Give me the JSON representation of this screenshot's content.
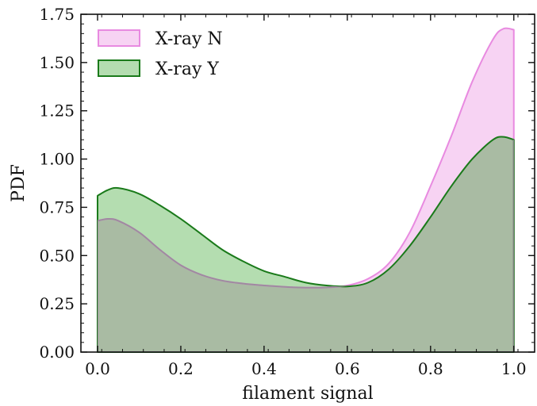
{
  "chart_data": {
    "type": "area",
    "xlabel": "filament signal",
    "ylabel": "PDF",
    "xlim": [
      -0.04,
      1.05
    ],
    "ylim": [
      0,
      1.75
    ],
    "xticks": [
      {
        "value": 0.0,
        "label": "0.0"
      },
      {
        "value": 0.2,
        "label": "0.2"
      },
      {
        "value": 0.4,
        "label": "0.4"
      },
      {
        "value": 0.6,
        "label": "0.6"
      },
      {
        "value": 0.8,
        "label": "0.8"
      },
      {
        "value": 1.0,
        "label": "1.0"
      }
    ],
    "yticks": [
      {
        "value": 0.0,
        "label": "0.00"
      },
      {
        "value": 0.25,
        "label": "0.25"
      },
      {
        "value": 0.5,
        "label": "0.50"
      },
      {
        "value": 0.75,
        "label": "0.75"
      },
      {
        "value": 1.0,
        "label": "1.00"
      },
      {
        "value": 1.25,
        "label": "1.25"
      },
      {
        "value": 1.5,
        "label": "1.50"
      },
      {
        "value": 1.75,
        "label": "1.75"
      }
    ],
    "grid": false,
    "legend_position": "top-left",
    "x": [
      0.0,
      0.025,
      0.05,
      0.1,
      0.15,
      0.2,
      0.25,
      0.3,
      0.35,
      0.4,
      0.45,
      0.5,
      0.55,
      0.6,
      0.65,
      0.7,
      0.75,
      0.8,
      0.85,
      0.9,
      0.95,
      0.975,
      1.0
    ],
    "series": [
      {
        "name": "X-ray N",
        "fill": "#f7d3f3",
        "stroke": "#e88ae0",
        "values": [
          0.68,
          0.69,
          0.68,
          0.62,
          0.53,
          0.45,
          0.4,
          0.37,
          0.355,
          0.345,
          0.338,
          0.334,
          0.335,
          0.345,
          0.38,
          0.46,
          0.62,
          0.86,
          1.12,
          1.4,
          1.62,
          1.675,
          1.67
        ]
      },
      {
        "name": "X-ray Y",
        "fill": "#b4ddb0",
        "stroke": "#1a7a1a",
        "values": [
          0.81,
          0.84,
          0.85,
          0.82,
          0.76,
          0.69,
          0.61,
          0.53,
          0.47,
          0.42,
          0.39,
          0.36,
          0.345,
          0.34,
          0.36,
          0.43,
          0.55,
          0.7,
          0.86,
          1.0,
          1.1,
          1.115,
          1.1
        ]
      }
    ],
    "overlap_fill": "#a9bba3"
  }
}
